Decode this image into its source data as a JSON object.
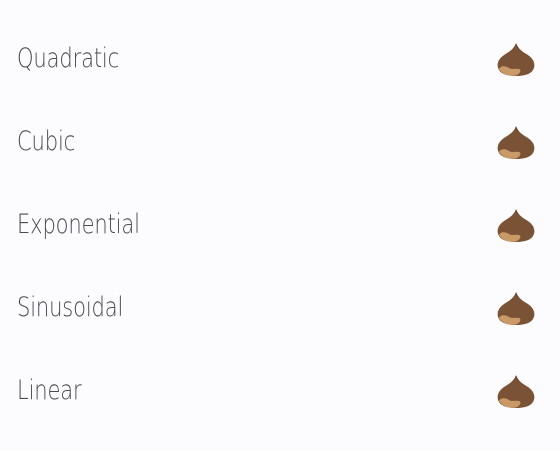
{
  "easing_list": {
    "items": [
      {
        "label": "Quadratic",
        "icon": "chestnut-icon"
      },
      {
        "label": "Cubic",
        "icon": "chestnut-icon"
      },
      {
        "label": "Exponential",
        "icon": "chestnut-icon"
      },
      {
        "label": "Sinusoidal",
        "icon": "chestnut-icon"
      },
      {
        "label": "Linear",
        "icon": "chestnut-icon"
      }
    ]
  },
  "colors": {
    "background": "#fcfcfe",
    "text": "#4a4a4f",
    "chestnut_shell": "#7a5236",
    "chestnut_base": "#c99a68"
  }
}
